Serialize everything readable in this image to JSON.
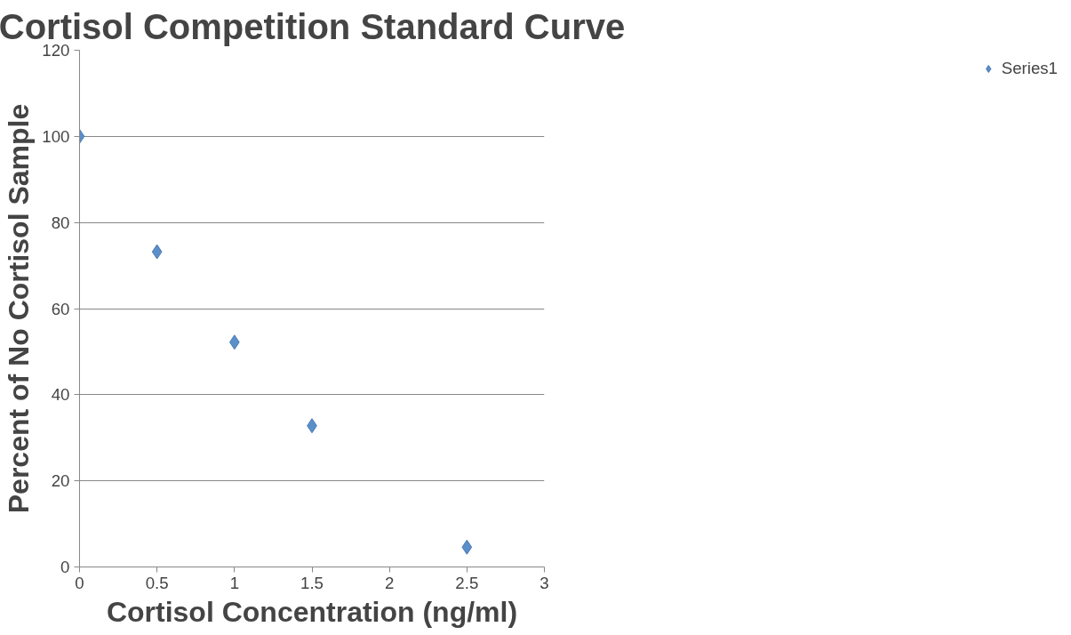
{
  "chart_data": {
    "type": "scatter",
    "title": "Cortisol Competition Standard Curve",
    "xlabel": "Cortisol Concentration (ng/ml)",
    "ylabel": "Percent of No Cortisol Sample",
    "x": [
      0,
      0.5,
      1,
      1.5,
      2.5
    ],
    "series": [
      {
        "name": "Series1",
        "color": "#5b8fc9",
        "values": [
          100,
          73.2,
          52.2,
          32.8,
          4.6
        ]
      }
    ],
    "xlim": [
      0,
      3
    ],
    "xticks": [
      0,
      0.5,
      1,
      1.5,
      2,
      2.5,
      3
    ],
    "ylim": [
      0,
      120
    ],
    "yticks": [
      0,
      20,
      40,
      60,
      80,
      100,
      120
    ],
    "grid": "y",
    "legend": "right",
    "marker": "diamond"
  }
}
